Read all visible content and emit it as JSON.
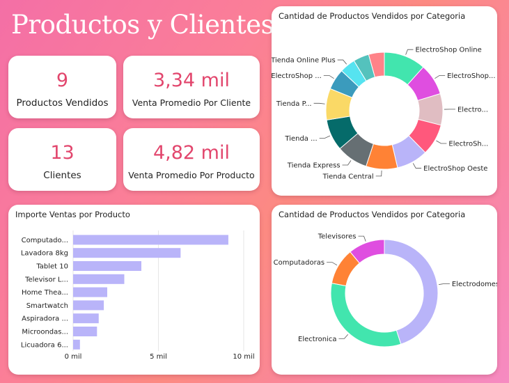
{
  "header": {
    "title": "Productos y Clientes"
  },
  "kpis": {
    "productos_vendidos": {
      "value": "9",
      "label": "Productos Vendidos"
    },
    "venta_promedio_cliente": {
      "value": "3,34 mil",
      "label": "Venta Promedio Por Cliente"
    },
    "clientes": {
      "value": "13",
      "label": "Clientes"
    },
    "venta_promedio_producto": {
      "value": "4,82 mil",
      "label": "Venta Promedio Por Producto"
    }
  },
  "chart_data": [
    {
      "type": "pie",
      "title": "Cantidad de Productos Vendidos por Categoria",
      "categories": [
        "ElectroShop Online",
        "ElectroShop...",
        "Electro...",
        "ElectroSh...",
        "ElectroShop Oeste",
        "Tienda Central",
        "Tienda Express",
        "Tienda ...",
        "Tienda P...",
        "ElectroShop ...",
        "Tienda Online Plus"
      ],
      "values": [
        10.4,
        7.8,
        7.8,
        7.8,
        7.8,
        7.8,
        7.8,
        7.8,
        7.8,
        5.2,
        3.9
      ],
      "extra_values": [
        3.9,
        3.9
      ],
      "colors": [
        "#42e5ae",
        "#df4ee0",
        "#e0bdc2",
        "#ff587c",
        "#b9b4f9",
        "#ff8235",
        "#666f73",
        "#056b6a",
        "#fad966",
        "#3b9bbd",
        "#56e3f0",
        "#54c2bd",
        "#ff8389",
        "#f6c343"
      ]
    },
    {
      "type": "bar",
      "orientation": "horizontal",
      "title": "Importe Ventas por Producto",
      "categories": [
        "Computado...",
        "Lavadora 8kg",
        "Tablet 10",
        "Televisor L...",
        "Home Thea...",
        "Smartwatch",
        "Aspiradora ...",
        "Microondas...",
        "Licuadora 6..."
      ],
      "values": [
        9.1,
        6.3,
        4.0,
        3.0,
        2.0,
        1.8,
        1.5,
        1.4,
        0.4
      ],
      "xlim": [
        0,
        10
      ],
      "ticks": [
        0,
        5,
        10
      ],
      "tick_labels": [
        "0 mil",
        "5 mil",
        "10 mil"
      ],
      "color": "#b9b4f9"
    },
    {
      "type": "pie",
      "title": "Cantidad de Productos Vendidos por Categoria",
      "categories": [
        "Electrodomesti...",
        "Electronica",
        "Computadoras",
        "Televisores"
      ],
      "values": [
        45,
        33,
        11,
        11
      ],
      "colors": [
        "#b9b4f9",
        "#42e5ae",
        "#ff8235",
        "#df4ee0"
      ]
    }
  ]
}
